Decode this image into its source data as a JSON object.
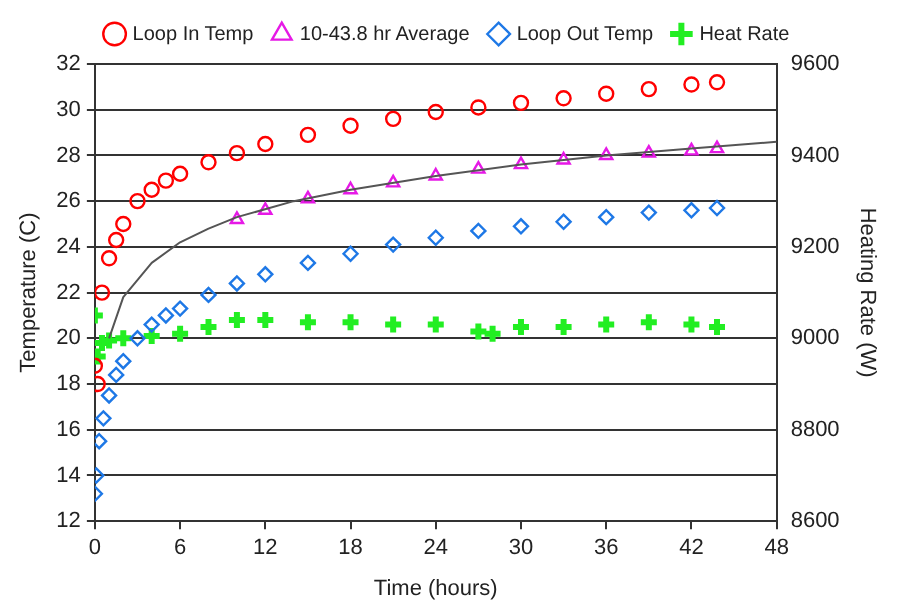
{
  "chart_data": {
    "type": "scatter",
    "xlabel": "Time (hours)",
    "ylabel": "Temperature (C)",
    "y2label": "Heating Rate (W)",
    "xlim": [
      0,
      48
    ],
    "xticks": [
      0,
      6,
      12,
      18,
      24,
      30,
      36,
      42,
      48
    ],
    "ylim": [
      12,
      32
    ],
    "yticks": [
      12,
      14,
      16,
      18,
      20,
      22,
      24,
      26,
      28,
      30,
      32
    ],
    "y2lim": [
      8600,
      9600
    ],
    "y2ticks": [
      8600,
      8800,
      9000,
      9200,
      9400,
      9600
    ],
    "grid": "y",
    "legend": "top",
    "series": [
      {
        "name": "Loop In Temp",
        "color": "#ff0000",
        "marker": "circle",
        "x": [
          0,
          0.2,
          0.5,
          1,
          1.5,
          2,
          3,
          4,
          5,
          6,
          8,
          10,
          12,
          15,
          18,
          21,
          24,
          27,
          30,
          33,
          36,
          39,
          42,
          43.8
        ],
        "values": [
          18.8,
          18,
          22,
          23.5,
          24.3,
          25,
          26,
          26.5,
          26.9,
          27.2,
          27.7,
          28.1,
          28.5,
          28.9,
          29.3,
          29.6,
          29.9,
          30.1,
          30.3,
          30.5,
          30.7,
          30.9,
          31.1,
          31.2
        ]
      },
      {
        "name": "10-43.8 hr Average",
        "color": "#e619e6",
        "marker": "triangle",
        "x": [
          10,
          12,
          15,
          18,
          21,
          24,
          27,
          30,
          33,
          36,
          39,
          42,
          43.8
        ],
        "values": [
          25.2,
          25.6,
          26.1,
          26.5,
          26.8,
          27.1,
          27.4,
          27.6,
          27.8,
          28,
          28.1,
          28.2,
          28.3
        ]
      },
      {
        "name": "Loop Out Temp",
        "color": "#1e78e6",
        "marker": "diamond",
        "x": [
          0,
          0.1,
          0.3,
          0.6,
          1,
          1.5,
          2,
          3,
          4,
          5,
          6,
          8,
          10,
          12,
          15,
          18,
          21,
          24,
          27,
          30,
          33,
          36,
          39,
          42,
          43.8
        ],
        "values": [
          13.2,
          14,
          15.5,
          16.5,
          17.5,
          18.4,
          19,
          20,
          20.6,
          21,
          21.3,
          21.9,
          22.4,
          22.8,
          23.3,
          23.7,
          24.1,
          24.4,
          24.7,
          24.9,
          25.1,
          25.3,
          25.5,
          25.6,
          25.7
        ]
      },
      {
        "name": "Heat Rate",
        "color": "#22ee22",
        "marker": "cross",
        "axis": "y2",
        "x": [
          0,
          0.2,
          0.5,
          1,
          2,
          4,
          6,
          8,
          10,
          12,
          15,
          18,
          21,
          24,
          27,
          28,
          30,
          33,
          36,
          39,
          42,
          43.8
        ],
        "values": [
          9050,
          8960,
          8990,
          8995,
          9000,
          9005,
          9010,
          9025,
          9040,
          9040,
          9035,
          9035,
          9030,
          9030,
          9015,
          9010,
          9025,
          9025,
          9030,
          9035,
          9030,
          9025
        ]
      },
      {
        "type": "line",
        "color": "#555555",
        "marker": "none",
        "x": [
          1,
          2,
          4,
          6,
          8,
          10,
          14,
          18,
          24,
          30,
          36,
          42,
          48
        ],
        "values": [
          20,
          21.8,
          23.3,
          24.2,
          24.8,
          25.3,
          26,
          26.5,
          27.1,
          27.6,
          28,
          28.3,
          28.6
        ]
      }
    ]
  }
}
